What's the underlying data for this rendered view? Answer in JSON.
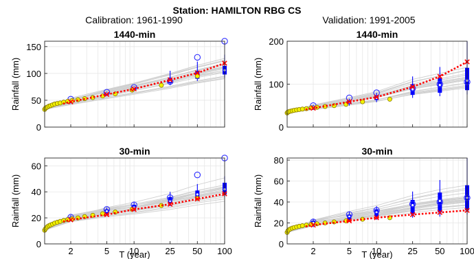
{
  "figure": {
    "title": "Station: HAMILTON RBG CS",
    "left_column_label": "Calibration: 1961-1990",
    "right_column_label": "Validation:  1991-2005"
  },
  "colors": {
    "grey_lines": "#cfcfcf",
    "obs_fill": "#f2f200",
    "obs_stroke": "#8a7a00",
    "boxes": "#0000ff",
    "fit_line": "#ff0000",
    "marker_ring": "#2b2bff"
  },
  "chart_data": [
    {
      "id": "cal-1440",
      "type": "line",
      "title": "1440-min",
      "xlabel": "",
      "ylabel": "Rainfall (mm)",
      "xscale": "log",
      "xlim": [
        1.03,
        100
      ],
      "ylim": [
        0,
        160
      ],
      "xticks": [
        2,
        5,
        10,
        25,
        50,
        100
      ],
      "xtick_labels": [],
      "yticks": [
        0,
        50,
        100,
        150
      ],
      "grid": true,
      "T": [
        2,
        5,
        10,
        25,
        50,
        100
      ],
      "fit_red": [
        47,
        61,
        71,
        88,
        101,
        119
      ],
      "model_median": [
        48,
        62,
        72,
        86,
        98,
        108
      ],
      "circles": [
        52,
        65,
        74,
        85,
        130,
        160
      ],
      "boxes": [
        [
          46,
          48,
          50
        ],
        [
          60,
          62,
          64
        ],
        [
          69,
          72,
          74
        ],
        [
          82,
          86,
          92
        ],
        [
          90,
          97,
          105
        ],
        [
          98,
          106,
          114
        ]
      ],
      "whiskers": [
        [
          44,
          52
        ],
        [
          58,
          66
        ],
        [
          66,
          76
        ],
        [
          78,
          105
        ],
        [
          86,
          122
        ],
        [
          92,
          135
        ]
      ],
      "obs_x": [
        1.03,
        1.05,
        1.08,
        1.11,
        1.15,
        1.2,
        1.26,
        1.33,
        1.42,
        1.53,
        1.67,
        1.85,
        2.08,
        2.4,
        2.85,
        3.5,
        4.5,
        6.2,
        9.5,
        20,
        50
      ],
      "obs_y": [
        33,
        35,
        36.5,
        37.5,
        39,
        40,
        41.5,
        43,
        44,
        45,
        46.5,
        48,
        49.5,
        51,
        53,
        55,
        58,
        62,
        69,
        78,
        95
      ]
    },
    {
      "id": "val-1440",
      "type": "line",
      "title": "1440-min",
      "xlabel": "",
      "ylabel": "Rainfall (mm)",
      "xscale": "log",
      "xlim": [
        1.03,
        100
      ],
      "ylim": [
        0,
        200
      ],
      "xticks": [
        2,
        5,
        10,
        25,
        50,
        100
      ],
      "xtick_labels": [],
      "yticks": [
        0,
        100,
        200
      ],
      "grid": true,
      "T": [
        2,
        5,
        10,
        25,
        50,
        100
      ],
      "fit_red": [
        44,
        59,
        70,
        94,
        118,
        152
      ],
      "model_median": [
        46,
        58,
        68,
        88,
        98,
        108
      ],
      "circles": [
        50,
        68,
        80,
        90,
        100,
        105
      ],
      "boxes": [
        [
          43,
          46,
          49
        ],
        [
          54,
          58,
          62
        ],
        [
          63,
          68,
          73
        ],
        [
          75,
          88,
          100
        ],
        [
          80,
          98,
          114
        ],
        [
          86,
          108,
          138
        ]
      ],
      "whiskers": [
        [
          40,
          52
        ],
        [
          50,
          66
        ],
        [
          58,
          80
        ],
        [
          68,
          118
        ],
        [
          72,
          140
        ],
        [
          76,
          200
        ]
      ],
      "obs_x": [
        1.03,
        1.05,
        1.08,
        1.12,
        1.17,
        1.23,
        1.31,
        1.4,
        1.52,
        1.68,
        1.9,
        2.2,
        2.7,
        3.4,
        4.6,
        7,
        14
      ],
      "obs_y": [
        33,
        35,
        36,
        37,
        38,
        39,
        40,
        41,
        42,
        43,
        45,
        46,
        48,
        50,
        53,
        59,
        65
      ]
    },
    {
      "id": "cal-30",
      "type": "line",
      "title": "30-min",
      "xlabel": "T (year)",
      "ylabel": "Rainfall (mm)",
      "xscale": "log",
      "xlim": [
        1.03,
        100
      ],
      "ylim": [
        0,
        66
      ],
      "xticks": [
        2,
        5,
        10,
        25,
        50,
        100
      ],
      "xtick_labels": [
        "2",
        "5",
        "10",
        "25",
        "50",
        "100"
      ],
      "yticks": [
        0,
        20,
        40,
        60
      ],
      "grid": true,
      "T": [
        2,
        5,
        10,
        25,
        50,
        100
      ],
      "fit_red": [
        18.5,
        22.5,
        26.5,
        30.5,
        34.5,
        38.5
      ],
      "model_median": [
        19.5,
        25,
        28,
        33,
        38,
        42
      ],
      "circles": [
        20.5,
        26.5,
        30,
        35.5,
        53,
        66
      ],
      "boxes": [
        [
          18.5,
          19.5,
          20.5
        ],
        [
          23.5,
          25,
          26.5
        ],
        [
          26.5,
          28,
          30
        ],
        [
          31,
          33,
          36
        ],
        [
          35,
          38,
          41
        ],
        [
          38,
          42,
          47
        ]
      ],
      "whiskers": [
        [
          17.5,
          22
        ],
        [
          22,
          28
        ],
        [
          25,
          32
        ],
        [
          29,
          40
        ],
        [
          33,
          46
        ],
        [
          36,
          52
        ]
      ],
      "obs_x": [
        1.03,
        1.05,
        1.08,
        1.11,
        1.15,
        1.2,
        1.26,
        1.33,
        1.42,
        1.53,
        1.67,
        1.85,
        2.08,
        2.4,
        2.85,
        3.5,
        4.5,
        6.2,
        9.5,
        20,
        50
      ],
      "obs_y": [
        10.5,
        11.5,
        12.5,
        13.3,
        14,
        14.6,
        15.2,
        16,
        16.6,
        17.3,
        18,
        18.6,
        19.2,
        20,
        21,
        22,
        23.2,
        24.5,
        26.5,
        29.5,
        35
      ]
    },
    {
      "id": "val-30",
      "type": "line",
      "title": "30-min",
      "xlabel": "T (year)",
      "ylabel": "Rainfall (mm)",
      "xscale": "log",
      "xlim": [
        1.03,
        100
      ],
      "ylim": [
        0,
        82
      ],
      "xticks": [
        2,
        5,
        10,
        25,
        50,
        100
      ],
      "xtick_labels": [
        "2",
        "5",
        "10",
        "25",
        "50",
        "100"
      ],
      "yticks": [
        0,
        20,
        40,
        60,
        80
      ],
      "grid": true,
      "T": [
        2,
        5,
        10,
        25,
        50,
        100
      ],
      "fit_red": [
        18,
        22,
        25,
        28,
        30,
        32
      ],
      "model_median": [
        20,
        26,
        30,
        37,
        41,
        44
      ],
      "circles": [
        21,
        28,
        32,
        38,
        40,
        44
      ],
      "boxes": [
        [
          18,
          20,
          22
        ],
        [
          23,
          26,
          28
        ],
        [
          26,
          30,
          33
        ],
        [
          28,
          37,
          42
        ],
        [
          30,
          41,
          49
        ],
        [
          32,
          44,
          56
        ]
      ],
      "whiskers": [
        [
          16,
          24
        ],
        [
          21,
          31
        ],
        [
          23,
          36
        ],
        [
          25,
          50
        ],
        [
          26,
          61
        ],
        [
          28,
          82
        ]
      ],
      "obs_x": [
        1.03,
        1.05,
        1.08,
        1.12,
        1.17,
        1.23,
        1.31,
        1.4,
        1.52,
        1.68,
        1.9,
        2.2,
        2.7,
        3.4,
        4.6,
        7,
        14
      ],
      "obs_y": [
        11,
        12.5,
        13.5,
        14.3,
        15,
        15.6,
        16.2,
        16.8,
        17.4,
        18,
        18.6,
        19.2,
        20,
        21,
        22,
        23.5,
        25
      ]
    }
  ]
}
